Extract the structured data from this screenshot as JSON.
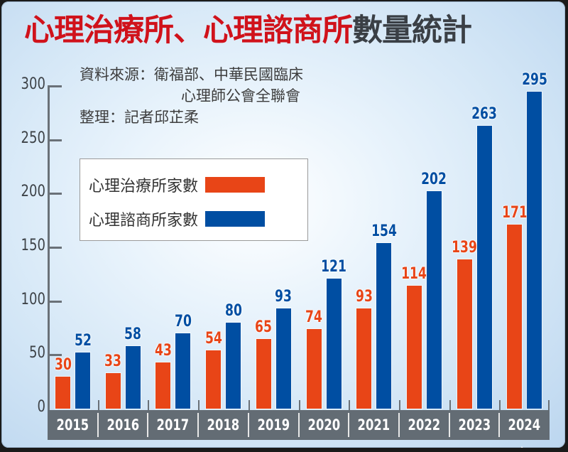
{
  "title": {
    "part_red": "心理治療所、心理諮商所",
    "part_dark": "數量統計"
  },
  "source": {
    "line1": "資料來源：衛福部、中華民國臨床",
    "line2": "心理師公會全聯會",
    "line3": "整理：記者邱芷柔"
  },
  "legend": [
    {
      "label": "心理治療所家數",
      "color": "#e84517"
    },
    {
      "label": "心理諮商所家數",
      "color": "#004ea2"
    }
  ],
  "colors": {
    "therapy": "#e84517",
    "counseling": "#004ea2",
    "title_red": "#d0121b",
    "axis_band": "#636c74"
  },
  "chart_data": {
    "type": "bar",
    "title": "心理治療所、心理諮商所數量統計",
    "xlabel": "",
    "ylabel": "",
    "categories": [
      "2015",
      "2016",
      "2017",
      "2018",
      "2019",
      "2020",
      "2021",
      "2022",
      "2023",
      "2024年"
    ],
    "series": [
      {
        "name": "心理治療所家數",
        "color": "#e84517",
        "values": [
          30,
          33,
          43,
          54,
          65,
          74,
          93,
          114,
          139,
          171
        ]
      },
      {
        "name": "心理諮商所家數",
        "color": "#004ea2",
        "values": [
          52,
          58,
          70,
          80,
          93,
          121,
          154,
          202,
          263,
          295
        ]
      }
    ],
    "ylim": [
      0,
      300
    ],
    "yticks": [
      0,
      50,
      100,
      150,
      200,
      250,
      300
    ],
    "grid": false,
    "legend_position": "upper-left",
    "data_labels": true
  }
}
